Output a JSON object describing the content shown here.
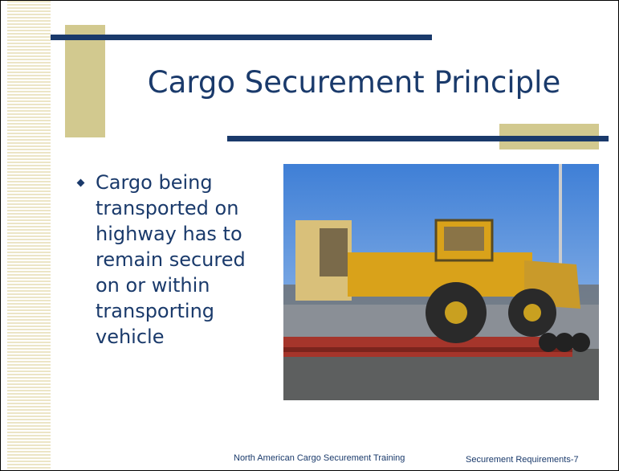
{
  "slide": {
    "title": "Cargo Securement Principle",
    "bullets": [
      "Cargo being transported on highway has to remain secured on or within transporting vehicle"
    ],
    "footer": {
      "left": "North American Cargo Securement Training",
      "right": "Securement Requirements-7"
    }
  }
}
